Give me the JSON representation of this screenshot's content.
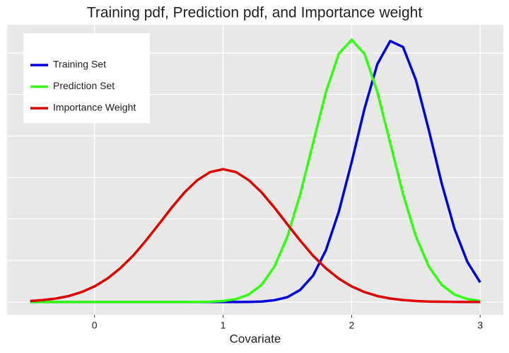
{
  "chart_data": {
    "type": "line",
    "title": "Training pdf, Prediction pdf, and Importance weight",
    "xlabel": "Covariate",
    "x": [
      -0.5,
      -0.4,
      -0.3,
      -0.2,
      -0.1,
      0,
      0.1,
      0.2,
      0.3,
      0.4,
      0.5,
      0.6,
      0.7,
      0.8,
      0.9,
      1.0,
      1.1,
      1.2,
      1.3,
      1.4,
      1.5,
      1.6,
      1.7,
      1.8,
      1.9,
      2.0,
      2.1,
      2.2,
      2.3,
      2.4,
      2.5,
      2.6,
      2.7,
      2.8,
      2.9,
      3.0
    ],
    "series": [
      {
        "name": "Training Set",
        "color": "#0000dd",
        "values": [
          0,
          0,
          0,
          0,
          0,
          0,
          0,
          0,
          0,
          0,
          0,
          0,
          0,
          0,
          0,
          0,
          0,
          0.001,
          0.003,
          0.011,
          0.029,
          0.073,
          0.159,
          0.312,
          0.543,
          0.842,
          1.164,
          1.433,
          1.572,
          1.536,
          1.337,
          1.037,
          0.716,
          0.441,
          0.242,
          0.118
        ]
      },
      {
        "name": "Prediction Set",
        "color": "#33ff11",
        "values": [
          0,
          0,
          0,
          0,
          0,
          0,
          0,
          0,
          0,
          0,
          0,
          0,
          0,
          0.001,
          0.002,
          0.006,
          0.018,
          0.045,
          0.104,
          0.214,
          0.394,
          0.649,
          0.958,
          1.265,
          1.495,
          1.58,
          1.495,
          1.265,
          0.958,
          0.649,
          0.394,
          0.214,
          0.104,
          0.045,
          0.018,
          0.006
        ]
      },
      {
        "name": "Importance Weight",
        "color": "#dd0000",
        "values": [
          0.006,
          0.012,
          0.021,
          0.036,
          0.06,
          0.094,
          0.141,
          0.203,
          0.279,
          0.37,
          0.468,
          0.568,
          0.66,
          0.734,
          0.783,
          0.8,
          0.783,
          0.734,
          0.66,
          0.568,
          0.468,
          0.37,
          0.279,
          0.203,
          0.141,
          0.094,
          0.06,
          0.036,
          0.021,
          0.012,
          0.006,
          0.003,
          0.002,
          0.001,
          0,
          0
        ]
      }
    ],
    "xlim": [
      -0.68,
      3.18
    ],
    "xticks": [
      0,
      1,
      2,
      3
    ],
    "ylim": [
      -0.077,
      1.67
    ],
    "yticks": [
      0,
      0.25,
      0.5,
      0.75,
      1,
      1.25,
      1.5
    ],
    "grid": true,
    "legend": "top-left"
  }
}
